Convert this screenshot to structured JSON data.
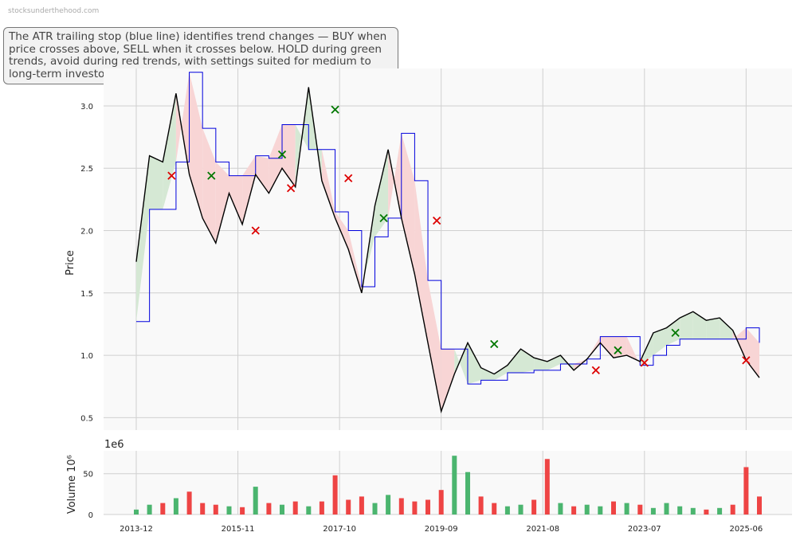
{
  "watermark": "stocksunderthehood.com",
  "annotation": "The ATR trailing stop (blue line) identifies trend changes — BUY when price crosses above, SELL when it crosses below. HOLD during green trends, avoid during red trends, with settings suited for medium to long-term investors.",
  "colors": {
    "price": "#000000",
    "stop": "#0000dd",
    "bull_fill": "#d5e8d4",
    "bear_fill": "#f8d5d5",
    "buy_marker": "#007700",
    "sell_marker": "#dd0000",
    "vol_up": "#4bb56f",
    "vol_down": "#ee4444",
    "grid": "#d0d0d0",
    "panel_bg": "#f9f9f9"
  },
  "chart_data": [
    {
      "type": "line",
      "ylabel": "Price",
      "ylim": [
        0.4,
        3.3
      ],
      "yticks": [
        "0.5",
        "1.0",
        "1.5",
        "2.0",
        "2.5",
        "3.0"
      ],
      "grid": true,
      "series": [
        {
          "role": "price",
          "x": [
            "2013-12",
            "2014-03",
            "2014-06",
            "2014-09",
            "2014-12",
            "2015-03",
            "2015-06",
            "2015-09",
            "2015-12",
            "2016-03",
            "2016-06",
            "2016-09",
            "2016-12",
            "2017-03",
            "2017-06",
            "2017-09",
            "2017-12",
            "2018-03",
            "2018-06",
            "2018-09",
            "2018-12",
            "2019-03",
            "2019-06",
            "2019-09",
            "2019-12",
            "2020-03",
            "2020-06",
            "2020-09",
            "2020-12",
            "2021-03",
            "2021-06",
            "2021-09",
            "2021-12",
            "2022-03",
            "2022-06",
            "2022-09",
            "2022-12",
            "2023-03",
            "2023-06",
            "2023-09",
            "2023-12",
            "2024-03",
            "2024-06",
            "2024-09",
            "2024-12",
            "2025-03",
            "2025-06",
            "2025-09"
          ],
          "values": [
            1.75,
            2.6,
            2.55,
            3.1,
            2.45,
            2.1,
            1.9,
            2.3,
            2.05,
            2.45,
            2.3,
            2.5,
            2.35,
            3.15,
            2.4,
            2.1,
            1.85,
            1.5,
            2.2,
            2.65,
            2.1,
            1.65,
            1.1,
            0.55,
            0.85,
            1.1,
            0.9,
            0.85,
            0.92,
            1.05,
            0.98,
            0.95,
            1.0,
            0.88,
            0.97,
            1.1,
            0.98,
            1.0,
            0.95,
            1.18,
            1.22,
            1.3,
            1.35,
            1.28,
            1.3,
            1.2,
            0.96,
            0.82
          ]
        },
        {
          "role": "atr_trailing_stop",
          "x": [
            "2013-12",
            "2014-03",
            "2014-06",
            "2014-09",
            "2014-12",
            "2015-03",
            "2015-06",
            "2015-09",
            "2015-12",
            "2016-03",
            "2016-06",
            "2016-09",
            "2016-12",
            "2017-03",
            "2017-06",
            "2017-09",
            "2017-12",
            "2018-03",
            "2018-06",
            "2018-09",
            "2018-12",
            "2019-03",
            "2019-06",
            "2019-09",
            "2019-12",
            "2020-03",
            "2020-06",
            "2020-09",
            "2020-12",
            "2021-03",
            "2021-06",
            "2021-09",
            "2021-12",
            "2022-03",
            "2022-06",
            "2022-09",
            "2022-12",
            "2023-03",
            "2023-06",
            "2023-09",
            "2023-12",
            "2024-03",
            "2024-06",
            "2024-09",
            "2024-12",
            "2025-03",
            "2025-06",
            "2025-09"
          ],
          "values": [
            1.27,
            2.17,
            2.17,
            2.55,
            3.27,
            2.82,
            2.55,
            2.44,
            2.44,
            2.6,
            2.58,
            2.85,
            2.85,
            2.65,
            2.65,
            2.15,
            2.0,
            1.55,
            1.95,
            2.1,
            2.78,
            2.4,
            1.6,
            1.05,
            1.05,
            0.77,
            0.8,
            0.8,
            0.86,
            0.86,
            0.88,
            0.88,
            0.93,
            0.93,
            0.97,
            1.15,
            1.15,
            1.15,
            0.92,
            1.0,
            1.08,
            1.13,
            1.13,
            1.13,
            1.13,
            1.13,
            1.22,
            1.1
          ]
        }
      ],
      "signals": [
        {
          "type": "sell",
          "x": "2014-08",
          "y": 2.44
        },
        {
          "type": "buy",
          "x": "2015-05",
          "y": 2.44
        },
        {
          "type": "sell",
          "x": "2016-03",
          "y": 2.0
        },
        {
          "type": "buy",
          "x": "2016-09",
          "y": 2.61
        },
        {
          "type": "sell",
          "x": "2016-11",
          "y": 2.34
        },
        {
          "type": "buy",
          "x": "2017-09",
          "y": 2.97
        },
        {
          "type": "sell",
          "x": "2017-12",
          "y": 2.42
        },
        {
          "type": "buy",
          "x": "2018-08",
          "y": 2.1
        },
        {
          "type": "sell",
          "x": "2019-08",
          "y": 2.08
        },
        {
          "type": "buy",
          "x": "2020-09",
          "y": 1.09
        },
        {
          "type": "sell",
          "x": "2022-08",
          "y": 0.88
        },
        {
          "type": "buy",
          "x": "2023-01",
          "y": 1.04
        },
        {
          "type": "sell",
          "x": "2023-07",
          "y": 0.94
        },
        {
          "type": "buy",
          "x": "2024-02",
          "y": 1.18
        },
        {
          "type": "sell",
          "x": "2025-06",
          "y": 0.96
        }
      ]
    },
    {
      "type": "bar",
      "ylabel": "Volume",
      "scale_label": "1e6",
      "exponent_label": "10⁶",
      "ylim": [
        0,
        78
      ],
      "yticks": [
        "0",
        "50"
      ],
      "xticks": [
        "2013-12",
        "2015-11",
        "2017-10",
        "2019-09",
        "2021-08",
        "2023-07",
        "2025-06"
      ],
      "grid": true,
      "series": [
        {
          "name": "",
          "x": [
            "2013-12",
            "2014-03",
            "2014-06",
            "2014-09",
            "2014-12",
            "2015-03",
            "2015-06",
            "2015-09",
            "2015-12",
            "2016-03",
            "2016-06",
            "2016-09",
            "2016-12",
            "2017-03",
            "2017-06",
            "2017-09",
            "2017-12",
            "2018-03",
            "2018-06",
            "2018-09",
            "2018-12",
            "2019-03",
            "2019-06",
            "2019-09",
            "2019-12",
            "2020-03",
            "2020-06",
            "2020-09",
            "2020-12",
            "2021-03",
            "2021-06",
            "2021-09",
            "2021-12",
            "2022-03",
            "2022-06",
            "2022-09",
            "2022-12",
            "2023-03",
            "2023-06",
            "2023-09",
            "2023-12",
            "2024-03",
            "2024-06",
            "2024-09",
            "2024-12",
            "2025-03",
            "2025-06",
            "2025-09"
          ],
          "values": [
            6,
            12,
            14,
            20,
            28,
            14,
            12,
            10,
            9,
            34,
            14,
            12,
            16,
            10,
            16,
            48,
            18,
            22,
            14,
            24,
            20,
            16,
            18,
            30,
            72,
            52,
            22,
            14,
            10,
            12,
            18,
            68,
            14,
            10,
            12,
            10,
            16,
            14,
            12,
            8,
            14,
            10,
            8,
            6,
            8,
            12,
            58,
            22
          ]
        }
      ]
    }
  ]
}
